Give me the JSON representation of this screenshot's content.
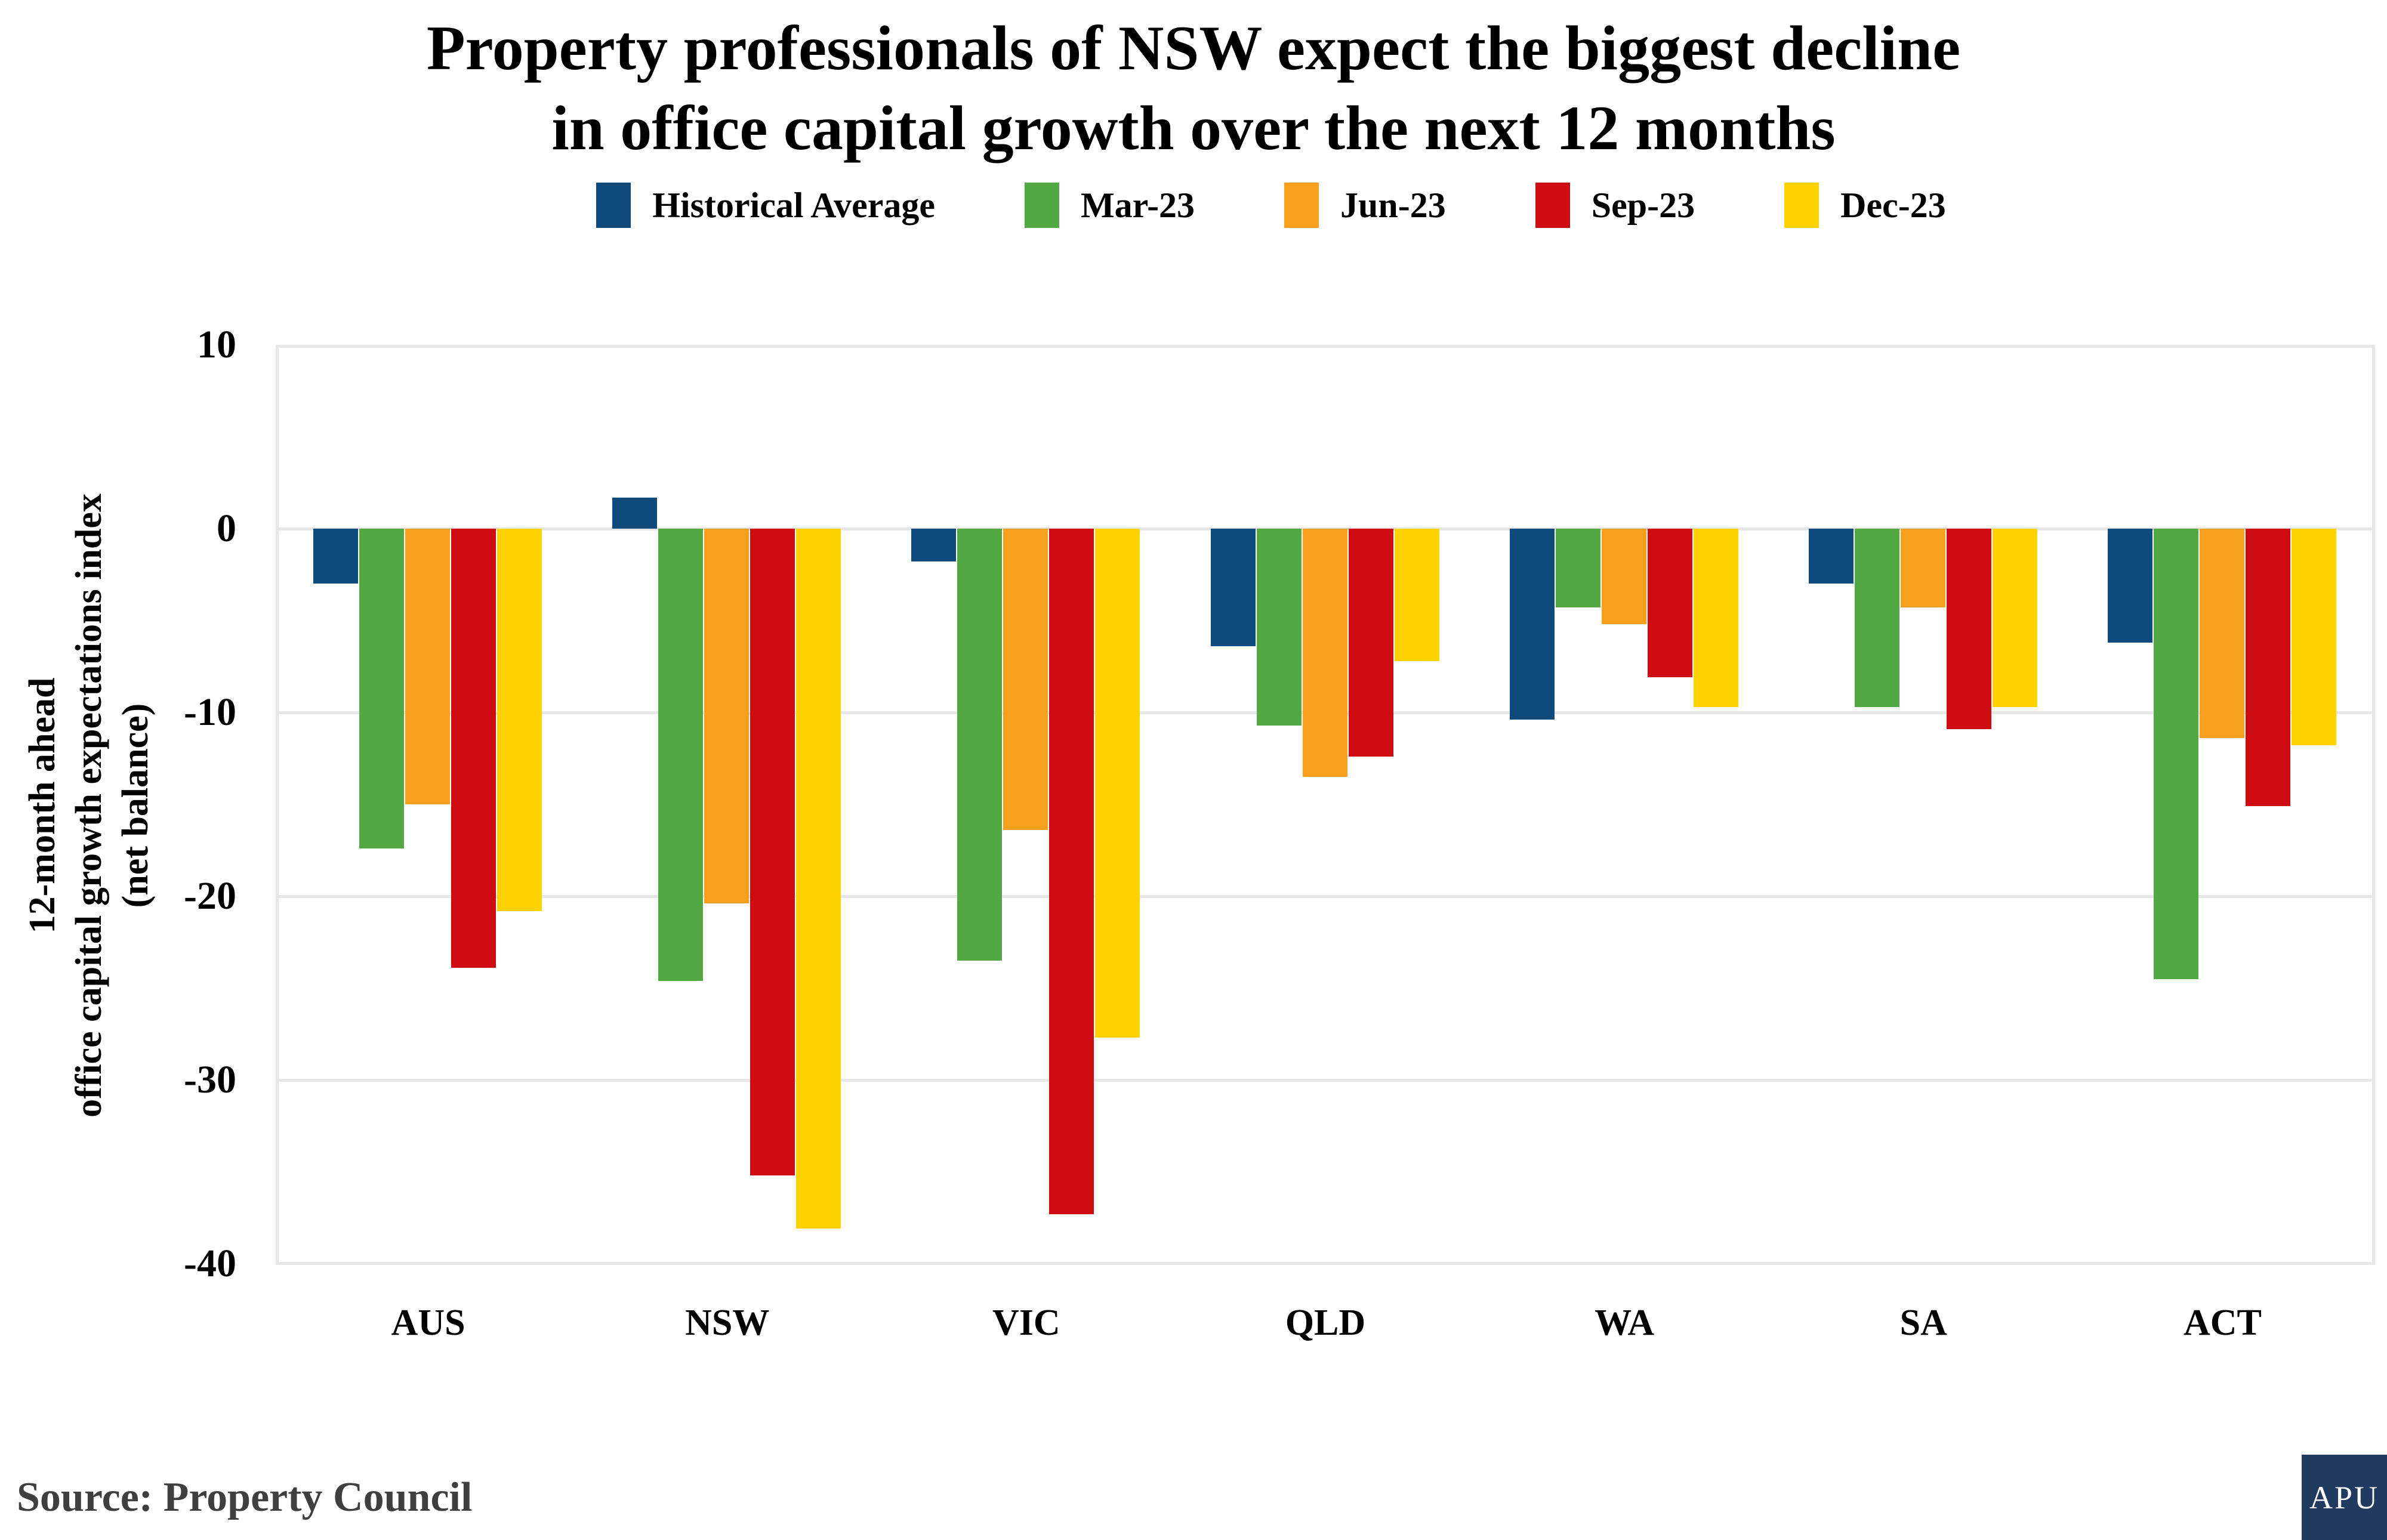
{
  "title": {
    "line1": "Property professionals of NSW expect the biggest decline",
    "line2": "in office capital growth over the next 12 months"
  },
  "y_axis": {
    "label_lines": [
      "12-month ahead",
      "office capital growth expectations index",
      "(net balance)"
    ],
    "ticks": [
      10,
      0,
      -10,
      -20,
      -30,
      -40
    ]
  },
  "source": {
    "text": "Source: Property Council"
  },
  "logo": {
    "text": "APU",
    "bg_color": "#203A60",
    "fg_color": "#FFFFFF"
  },
  "colors": {
    "grid": "#E7E7E7",
    "historical_average": "#0E4A7B",
    "mar_23": "#52A944",
    "jun_23": "#F6A01E",
    "sep_23": "#CE0B10",
    "dec_23": "#FFD300"
  },
  "chart_data": {
    "type": "bar",
    "title": "Property professionals of NSW expect the biggest decline in office capital growth over the next 12 months",
    "xlabel": "",
    "ylabel": "12-month ahead office capital growth expectations index (net balance)",
    "ylim": [
      -40,
      10
    ],
    "grid": true,
    "legend_position": "top",
    "categories": [
      "AUS",
      "NSW",
      "VIC",
      "QLD",
      "WA",
      "SA",
      "ACT"
    ],
    "series": [
      {
        "name": "Historical Average",
        "color": "#0E4A7B",
        "values": [
          -3.0,
          1.7,
          -1.8,
          -6.4,
          -10.4,
          -3.0,
          -6.2
        ]
      },
      {
        "name": "Mar-23",
        "color": "#52A944",
        "values": [
          -17.4,
          -24.6,
          -23.5,
          -10.7,
          -4.3,
          -9.7,
          -24.5
        ]
      },
      {
        "name": "Jun-23",
        "color": "#F6A01E",
        "values": [
          -15.0,
          -20.4,
          -16.4,
          -13.5,
          -5.2,
          -4.3,
          -11.4
        ]
      },
      {
        "name": "Sep-23",
        "color": "#CE0B10",
        "values": [
          -23.9,
          -35.2,
          -37.3,
          -12.4,
          -8.1,
          -10.9,
          -15.1
        ]
      },
      {
        "name": "Dec-23",
        "color": "#FFD300",
        "values": [
          -20.8,
          -38.1,
          -27.7,
          -7.2,
          -9.7,
          -9.7,
          -11.8
        ]
      }
    ]
  }
}
